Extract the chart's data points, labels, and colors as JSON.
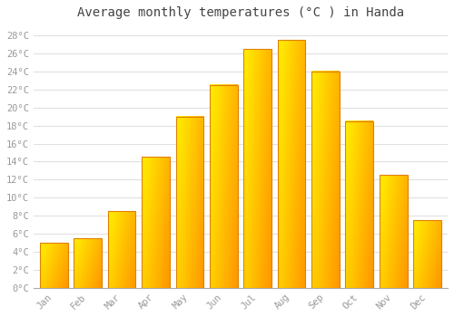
{
  "title": "Average monthly temperatures (°C ) in Handa",
  "months": [
    "Jan",
    "Feb",
    "Mar",
    "Apr",
    "May",
    "Jun",
    "Jul",
    "Aug",
    "Sep",
    "Oct",
    "Nov",
    "Dec"
  ],
  "temperatures": [
    5.0,
    5.5,
    8.5,
    14.5,
    19.0,
    22.5,
    26.5,
    27.5,
    24.0,
    18.5,
    12.5,
    7.5
  ],
  "bar_color": "#FFA500",
  "bar_color_light": "#FFD040",
  "bar_edge_color": "#E08000",
  "ylim": [
    0,
    29
  ],
  "yticks": [
    0,
    2,
    4,
    6,
    8,
    10,
    12,
    14,
    16,
    18,
    20,
    22,
    24,
    26,
    28
  ],
  "ytick_labels": [
    "0°C",
    "2°C",
    "4°C",
    "6°C",
    "8°C",
    "10°C",
    "12°C",
    "14°C",
    "16°C",
    "18°C",
    "20°C",
    "22°C",
    "24°C",
    "26°C",
    "28°C"
  ],
  "bg_color": "#ffffff",
  "grid_color": "#e0e0e0",
  "title_fontsize": 10,
  "tick_fontsize": 7.5,
  "font_family": "monospace",
  "tick_color": "#999999",
  "bar_width": 0.82
}
